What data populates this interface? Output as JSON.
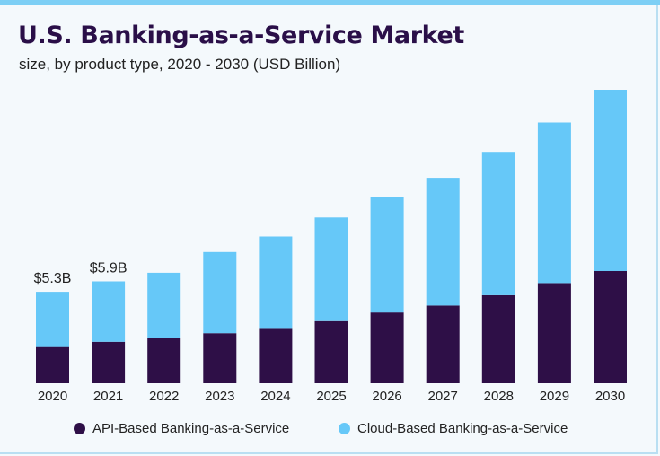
{
  "colors": {
    "api": "#2e0f47",
    "cloud": "#66c8f8",
    "text": "#222222",
    "title": "#2a0f48",
    "accent": "#7dcff5"
  },
  "chart_data": {
    "type": "bar",
    "stacked": true,
    "title": "U.S. Banking-as-a-Service Market",
    "subtitle": "size, by product type, 2020 - 2030 (USD Billion)",
    "xlabel": "",
    "ylabel": "",
    "categories": [
      "2020",
      "2021",
      "2022",
      "2023",
      "2024",
      "2025",
      "2026",
      "2027",
      "2028",
      "2029",
      "2030"
    ],
    "series": [
      {
        "name": "API-Based Banking-as-a-Service",
        "values": [
          2.1,
          2.4,
          2.6,
          2.9,
          3.2,
          3.6,
          4.1,
          4.5,
          5.1,
          5.8,
          6.5
        ]
      },
      {
        "name": "Cloud-Based Banking-as-a-Service",
        "values": [
          3.2,
          3.5,
          3.8,
          4.7,
          5.3,
          6.0,
          6.7,
          7.4,
          8.3,
          9.3,
          10.5
        ]
      }
    ],
    "data_labels": [
      {
        "category": "2020",
        "text": "$5.3B"
      },
      {
        "category": "2021",
        "text": "$5.9B"
      }
    ],
    "ylim": [
      0,
      17
    ],
    "grid": false,
    "legend_position": "bottom"
  }
}
